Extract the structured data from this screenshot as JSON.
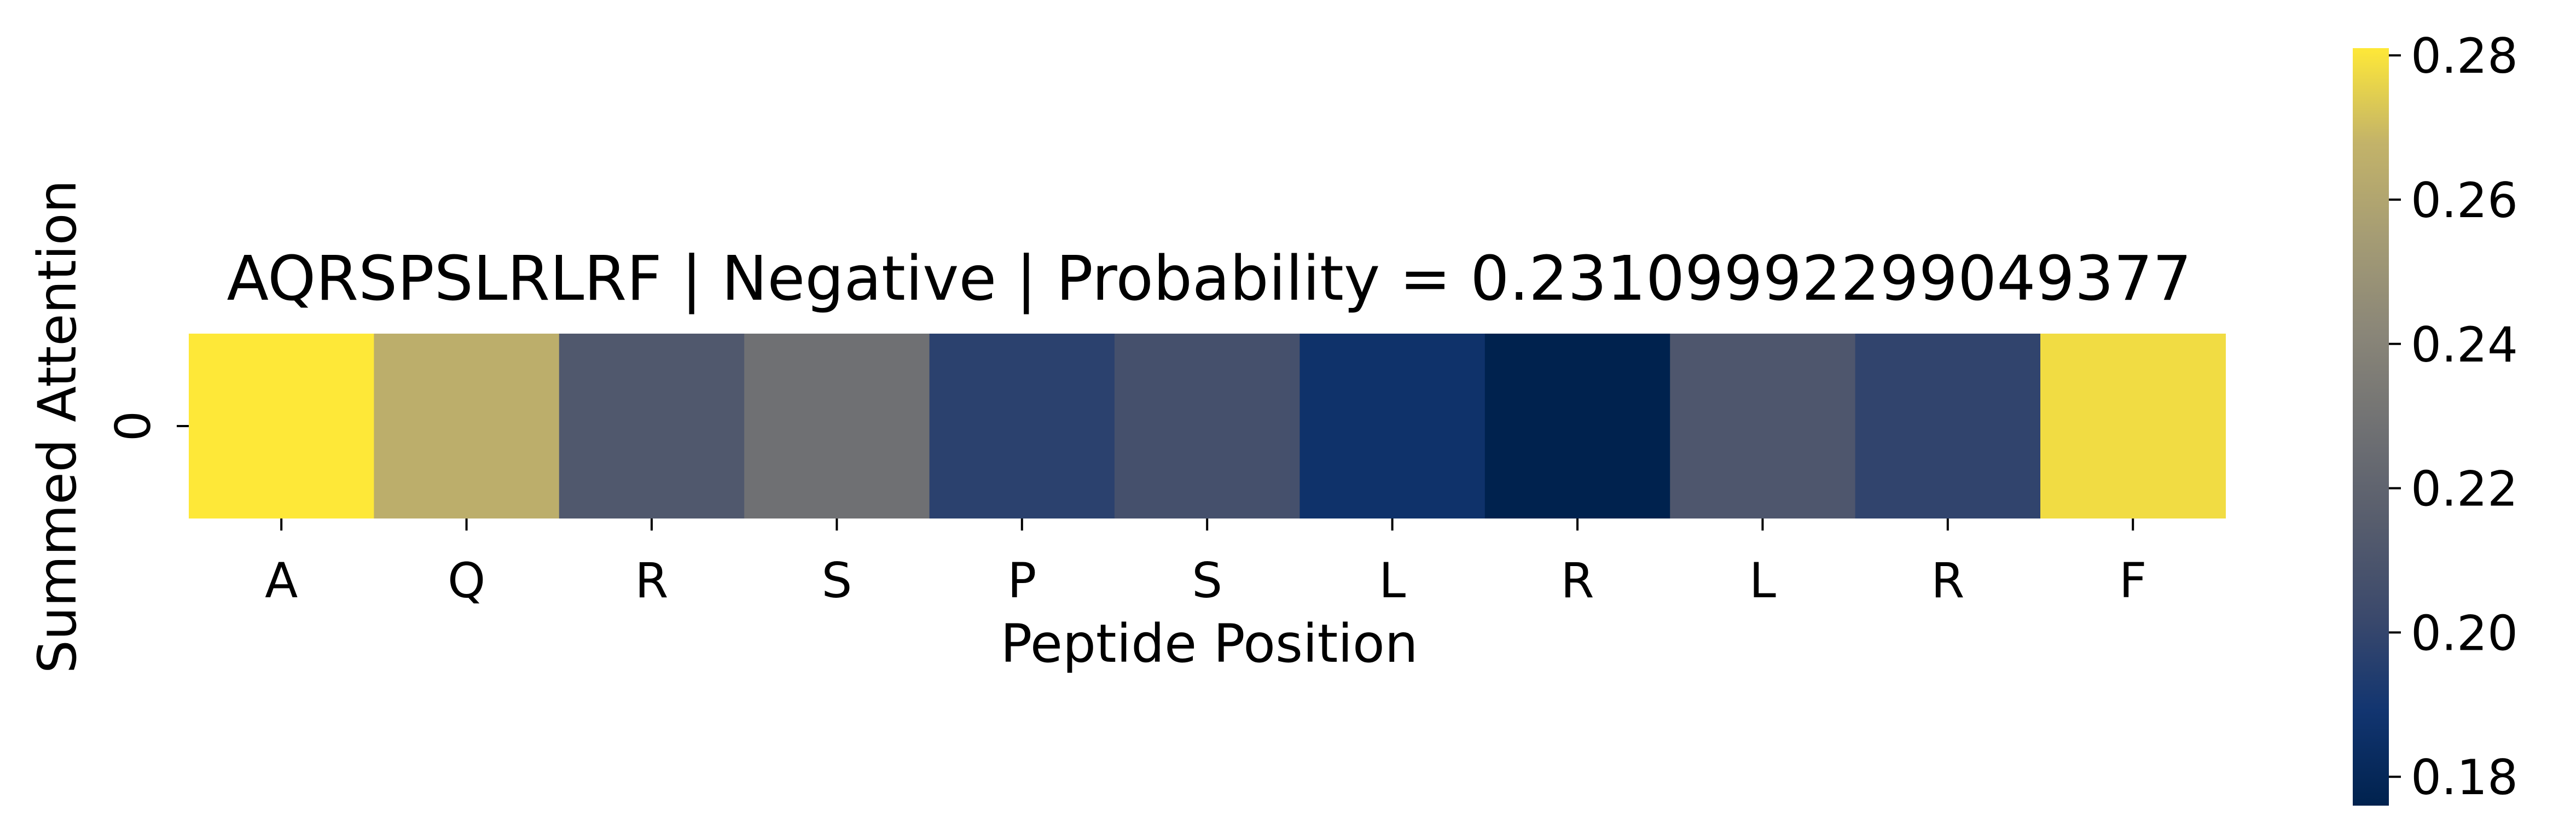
{
  "chart_data": {
    "type": "heatmap",
    "title": "AQRSPSLRLRF | Negative | Probability = 0.23109992299049377",
    "xlabel": "Peptide Position",
    "ylabel": "Summed Attention",
    "x_categories": [
      "A",
      "Q",
      "R",
      "S",
      "P",
      "S",
      "L",
      "R",
      "L",
      "R",
      "F"
    ],
    "y_categories": [
      "0"
    ],
    "values": [
      [
        0.281,
        0.265,
        0.212,
        0.228,
        0.197,
        0.207,
        0.187,
        0.176,
        0.211,
        0.199,
        0.278
      ]
    ],
    "colormap": "cividis",
    "colorbar": {
      "vmin": 0.176,
      "vmax": 0.281,
      "ticks": [
        "0.18",
        "0.20",
        "0.22",
        "0.24",
        "0.26",
        "0.28"
      ],
      "tick_values": [
        0.18,
        0.2,
        0.22,
        0.24,
        0.26,
        0.28
      ]
    }
  }
}
